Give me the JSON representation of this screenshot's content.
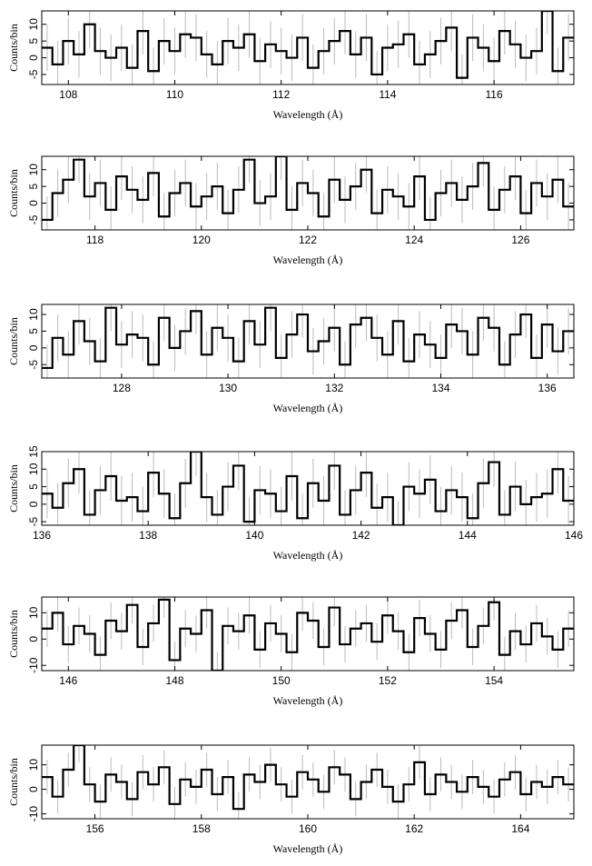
{
  "chart_data": [
    {
      "type": "step",
      "xlabel": "Wavelength (Å)",
      "ylabel": "Counts/bin",
      "color": "#000000",
      "error_color": "#bbbbbb",
      "error": 7,
      "xlim": [
        107.5,
        117.5
      ],
      "ylim": [
        -8,
        14
      ],
      "xticks": [
        108,
        110,
        112,
        114,
        116
      ],
      "yticks": [
        -5,
        0,
        5,
        10
      ],
      "x": [
        107.6,
        107.8,
        108.0,
        108.2,
        108.4,
        108.6,
        108.8,
        109.0,
        109.2,
        109.4,
        109.6,
        109.8,
        110.0,
        110.2,
        110.4,
        110.6,
        110.8,
        111.0,
        111.2,
        111.4,
        111.6,
        111.8,
        112.0,
        112.2,
        112.4,
        112.6,
        112.8,
        113.0,
        113.2,
        113.4,
        113.6,
        113.8,
        114.0,
        114.2,
        114.4,
        114.6,
        114.8,
        115.0,
        115.2,
        115.4,
        115.6,
        115.8,
        116.0,
        116.2,
        116.4,
        116.6,
        116.8,
        117.0,
        117.2,
        117.4
      ],
      "values": [
        3,
        -2,
        5,
        1,
        10,
        2,
        0,
        3,
        -3,
        8,
        -4,
        5,
        2,
        7,
        6,
        1,
        -2,
        5,
        3,
        7,
        -1,
        4,
        2,
        0,
        6,
        -3,
        2,
        5,
        8,
        1,
        6,
        -5,
        3,
        4,
        7,
        -2,
        1,
        5,
        9,
        -6,
        6,
        3,
        -1,
        8,
        4,
        0,
        2,
        14,
        -4,
        6
      ]
    },
    {
      "type": "step",
      "xlabel": "Wavelength (Å)",
      "ylabel": "Counts/bin",
      "color": "#000000",
      "error_color": "#bbbbbb",
      "error": 7,
      "xlim": [
        117,
        127
      ],
      "ylim": [
        -8,
        14
      ],
      "xticks": [
        118,
        120,
        122,
        124,
        126
      ],
      "yticks": [
        -5,
        0,
        5,
        10
      ],
      "x": [
        117.1,
        117.3,
        117.5,
        117.7,
        117.9,
        118.1,
        118.3,
        118.5,
        118.7,
        118.9,
        119.1,
        119.3,
        119.5,
        119.7,
        119.9,
        120.1,
        120.3,
        120.5,
        120.7,
        120.9,
        121.1,
        121.3,
        121.5,
        121.7,
        121.9,
        122.1,
        122.3,
        122.5,
        122.7,
        122.9,
        123.1,
        123.3,
        123.5,
        123.7,
        123.9,
        124.1,
        124.3,
        124.5,
        124.7,
        124.9,
        125.1,
        125.3,
        125.5,
        125.7,
        125.9,
        126.1,
        126.3,
        126.5,
        126.7,
        126.9
      ],
      "values": [
        -5,
        3,
        7,
        13,
        2,
        6,
        -2,
        8,
        4,
        1,
        9,
        -4,
        3,
        6,
        -1,
        2,
        5,
        -3,
        4,
        13,
        0,
        2,
        14,
        -2,
        6,
        3,
        -4,
        7,
        1,
        5,
        10,
        -3,
        4,
        2,
        -1,
        8,
        -5,
        3,
        6,
        1,
        5,
        12,
        -2,
        4,
        8,
        -3,
        6,
        2,
        7,
        -1
      ]
    },
    {
      "type": "step",
      "xlabel": "Wavelength (Å)",
      "ylabel": "Counts/bin",
      "color": "#000000",
      "error_color": "#bbbbbb",
      "error": 7,
      "xlim": [
        126.5,
        136.5
      ],
      "ylim": [
        -9,
        13
      ],
      "xticks": [
        128,
        130,
        132,
        134,
        136
      ],
      "yticks": [
        -5,
        0,
        5,
        10
      ],
      "x": [
        126.6,
        126.8,
        127.0,
        127.2,
        127.4,
        127.6,
        127.8,
        128.0,
        128.2,
        128.4,
        128.6,
        128.8,
        129.0,
        129.2,
        129.4,
        129.6,
        129.8,
        130.0,
        130.2,
        130.4,
        130.6,
        130.8,
        131.0,
        131.2,
        131.4,
        131.6,
        131.8,
        132.0,
        132.2,
        132.4,
        132.6,
        132.8,
        133.0,
        133.2,
        133.4,
        133.6,
        133.8,
        134.0,
        134.2,
        134.4,
        134.6,
        134.8,
        135.0,
        135.2,
        135.4,
        135.6,
        135.8,
        136.0,
        136.2,
        136.4
      ],
      "values": [
        -6,
        3,
        -2,
        8,
        2,
        -4,
        12,
        1,
        4,
        3,
        -5,
        9,
        0,
        5,
        11,
        -2,
        6,
        3,
        -4,
        8,
        1,
        12,
        -3,
        4,
        10,
        -1,
        2,
        6,
        -5,
        7,
        9,
        3,
        -2,
        8,
        -4,
        4,
        1,
        -3,
        7,
        5,
        -2,
        9,
        6,
        -5,
        4,
        10,
        -3,
        7,
        -1,
        5
      ]
    },
    {
      "type": "step",
      "xlabel": "Wavelength (Å)",
      "ylabel": "Counts/bin",
      "color": "#000000",
      "error_color": "#bbbbbb",
      "error": 7,
      "xlim": [
        136,
        146
      ],
      "ylim": [
        -6,
        15
      ],
      "xticks": [
        136,
        138,
        140,
        142,
        144,
        146
      ],
      "yticks": [
        -5,
        0,
        5,
        10,
        15
      ],
      "x": [
        136.1,
        136.3,
        136.5,
        136.7,
        136.9,
        137.1,
        137.3,
        137.5,
        137.7,
        137.9,
        138.1,
        138.3,
        138.5,
        138.7,
        138.9,
        139.1,
        139.3,
        139.5,
        139.7,
        139.9,
        140.1,
        140.3,
        140.5,
        140.7,
        140.9,
        141.1,
        141.3,
        141.5,
        141.7,
        141.9,
        142.1,
        142.3,
        142.5,
        142.7,
        142.9,
        143.1,
        143.3,
        143.5,
        143.7,
        143.9,
        144.1,
        144.3,
        144.5,
        144.7,
        144.9,
        145.1,
        145.3,
        145.5,
        145.7,
        145.9
      ],
      "values": [
        3,
        -1,
        6,
        10,
        -3,
        4,
        8,
        1,
        2,
        -2,
        9,
        3,
        -4,
        6,
        15,
        2,
        -3,
        5,
        11,
        -5,
        4,
        3,
        -2,
        8,
        -4,
        6,
        1,
        11,
        -3,
        4,
        9,
        -1,
        2,
        -6,
        5,
        3,
        7,
        -2,
        4,
        2,
        -4,
        6,
        12,
        -3,
        5,
        0,
        2,
        3,
        10,
        1
      ]
    },
    {
      "type": "step",
      "xlabel": "Wavelength (Å)",
      "ylabel": "Counts/bin",
      "color": "#000000",
      "error_color": "#bbbbbb",
      "error": 7,
      "xlim": [
        145.5,
        155.5
      ],
      "ylim": [
        -12,
        16
      ],
      "xticks": [
        146,
        148,
        150,
        152,
        154
      ],
      "yticks": [
        -10,
        0,
        10
      ],
      "x": [
        145.6,
        145.8,
        146.0,
        146.2,
        146.4,
        146.6,
        146.8,
        147.0,
        147.2,
        147.4,
        147.6,
        147.8,
        148.0,
        148.2,
        148.4,
        148.6,
        148.8,
        149.0,
        149.2,
        149.4,
        149.6,
        149.8,
        150.0,
        150.2,
        150.4,
        150.6,
        150.8,
        151.0,
        151.2,
        151.4,
        151.6,
        151.8,
        152.0,
        152.2,
        152.4,
        152.6,
        152.8,
        153.0,
        153.2,
        153.4,
        153.6,
        153.8,
        154.0,
        154.2,
        154.4,
        154.6,
        154.8,
        155.0,
        155.2,
        155.4
      ],
      "values": [
        4,
        10,
        -2,
        5,
        2,
        -6,
        7,
        3,
        13,
        -3,
        6,
        15,
        -8,
        4,
        2,
        11,
        -12,
        5,
        3,
        9,
        -4,
        6,
        2,
        -5,
        10,
        7,
        -3,
        12,
        -2,
        4,
        6,
        -1,
        9,
        3,
        -5,
        8,
        2,
        -4,
        7,
        11,
        -3,
        5,
        14,
        -6,
        3,
        -2,
        6,
        1,
        -4,
        4
      ]
    },
    {
      "type": "step",
      "xlabel": "Wavelength (Å)",
      "ylabel": "Counts/bin",
      "color": "#000000",
      "error_color": "#bbbbbb",
      "error": 7,
      "xlim": [
        155,
        165
      ],
      "ylim": [
        -12,
        18
      ],
      "xticks": [
        156,
        158,
        160,
        162,
        164
      ],
      "yticks": [
        -10,
        0,
        10
      ],
      "x": [
        155.1,
        155.3,
        155.5,
        155.7,
        155.9,
        156.1,
        156.3,
        156.5,
        156.7,
        156.9,
        157.1,
        157.3,
        157.5,
        157.7,
        157.9,
        158.1,
        158.3,
        158.5,
        158.7,
        158.9,
        159.1,
        159.3,
        159.5,
        159.7,
        159.9,
        160.1,
        160.3,
        160.5,
        160.7,
        160.9,
        161.1,
        161.3,
        161.5,
        161.7,
        161.9,
        162.1,
        162.3,
        162.5,
        162.7,
        162.9,
        163.1,
        163.3,
        163.5,
        163.7,
        163.9,
        164.1,
        164.3,
        164.5,
        164.7,
        164.9
      ],
      "values": [
        5,
        -3,
        8,
        18,
        2,
        -5,
        6,
        3,
        -4,
        7,
        2,
        9,
        -6,
        4,
        1,
        8,
        -2,
        5,
        -8,
        6,
        3,
        10,
        2,
        -3,
        7,
        4,
        -1,
        9,
        6,
        -4,
        3,
        8,
        1,
        -5,
        2,
        11,
        -2,
        6,
        3,
        -1,
        5,
        1,
        -3,
        4,
        7,
        -2,
        3,
        1,
        5,
        2
      ]
    }
  ]
}
